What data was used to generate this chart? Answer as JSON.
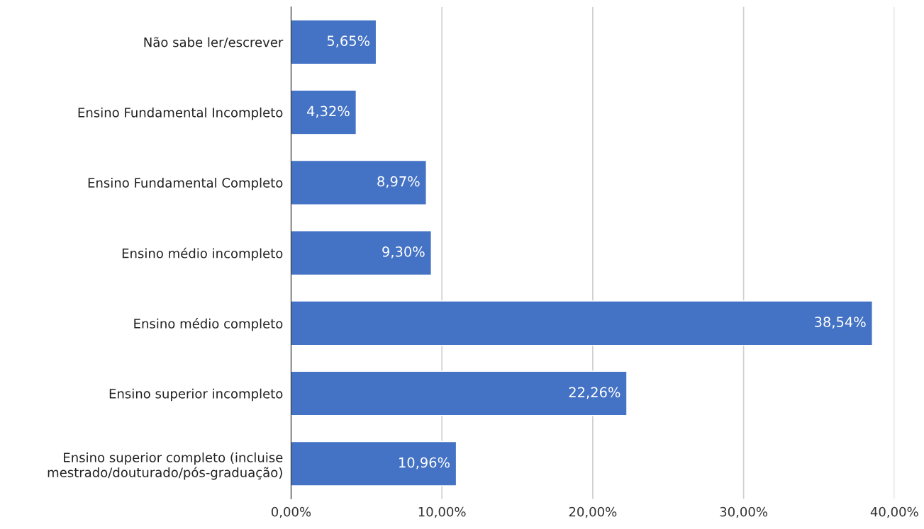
{
  "chart_data": {
    "type": "bar",
    "orientation": "horizontal",
    "categories": [
      "Não sabe ler/escrever",
      "Ensino Fundamental Incompleto",
      "Ensino Fundamental Completo",
      "Ensino médio incompleto",
      "Ensino médio completo",
      "Ensino superior incompleto",
      "Ensino superior completo (incluise\nmestrado/douturado/pós-graduação)"
    ],
    "values": [
      5.65,
      4.32,
      8.97,
      9.3,
      38.54,
      22.26,
      10.96
    ],
    "value_labels": [
      "5,65%",
      "4,32%",
      "8,97%",
      "9,30%",
      "38,54%",
      "22,26%",
      "10,96%"
    ],
    "color": "#4472c4",
    "xlim": [
      0,
      40
    ],
    "xticks": [
      {
        "value": 0,
        "label": "0,00%"
      },
      {
        "value": 10,
        "label": "10,00%"
      },
      {
        "value": 20,
        "label": "20,00%"
      },
      {
        "value": 30,
        "label": "30,00%"
      },
      {
        "value": 40,
        "label": "40,00%"
      }
    ],
    "grid": "x"
  }
}
